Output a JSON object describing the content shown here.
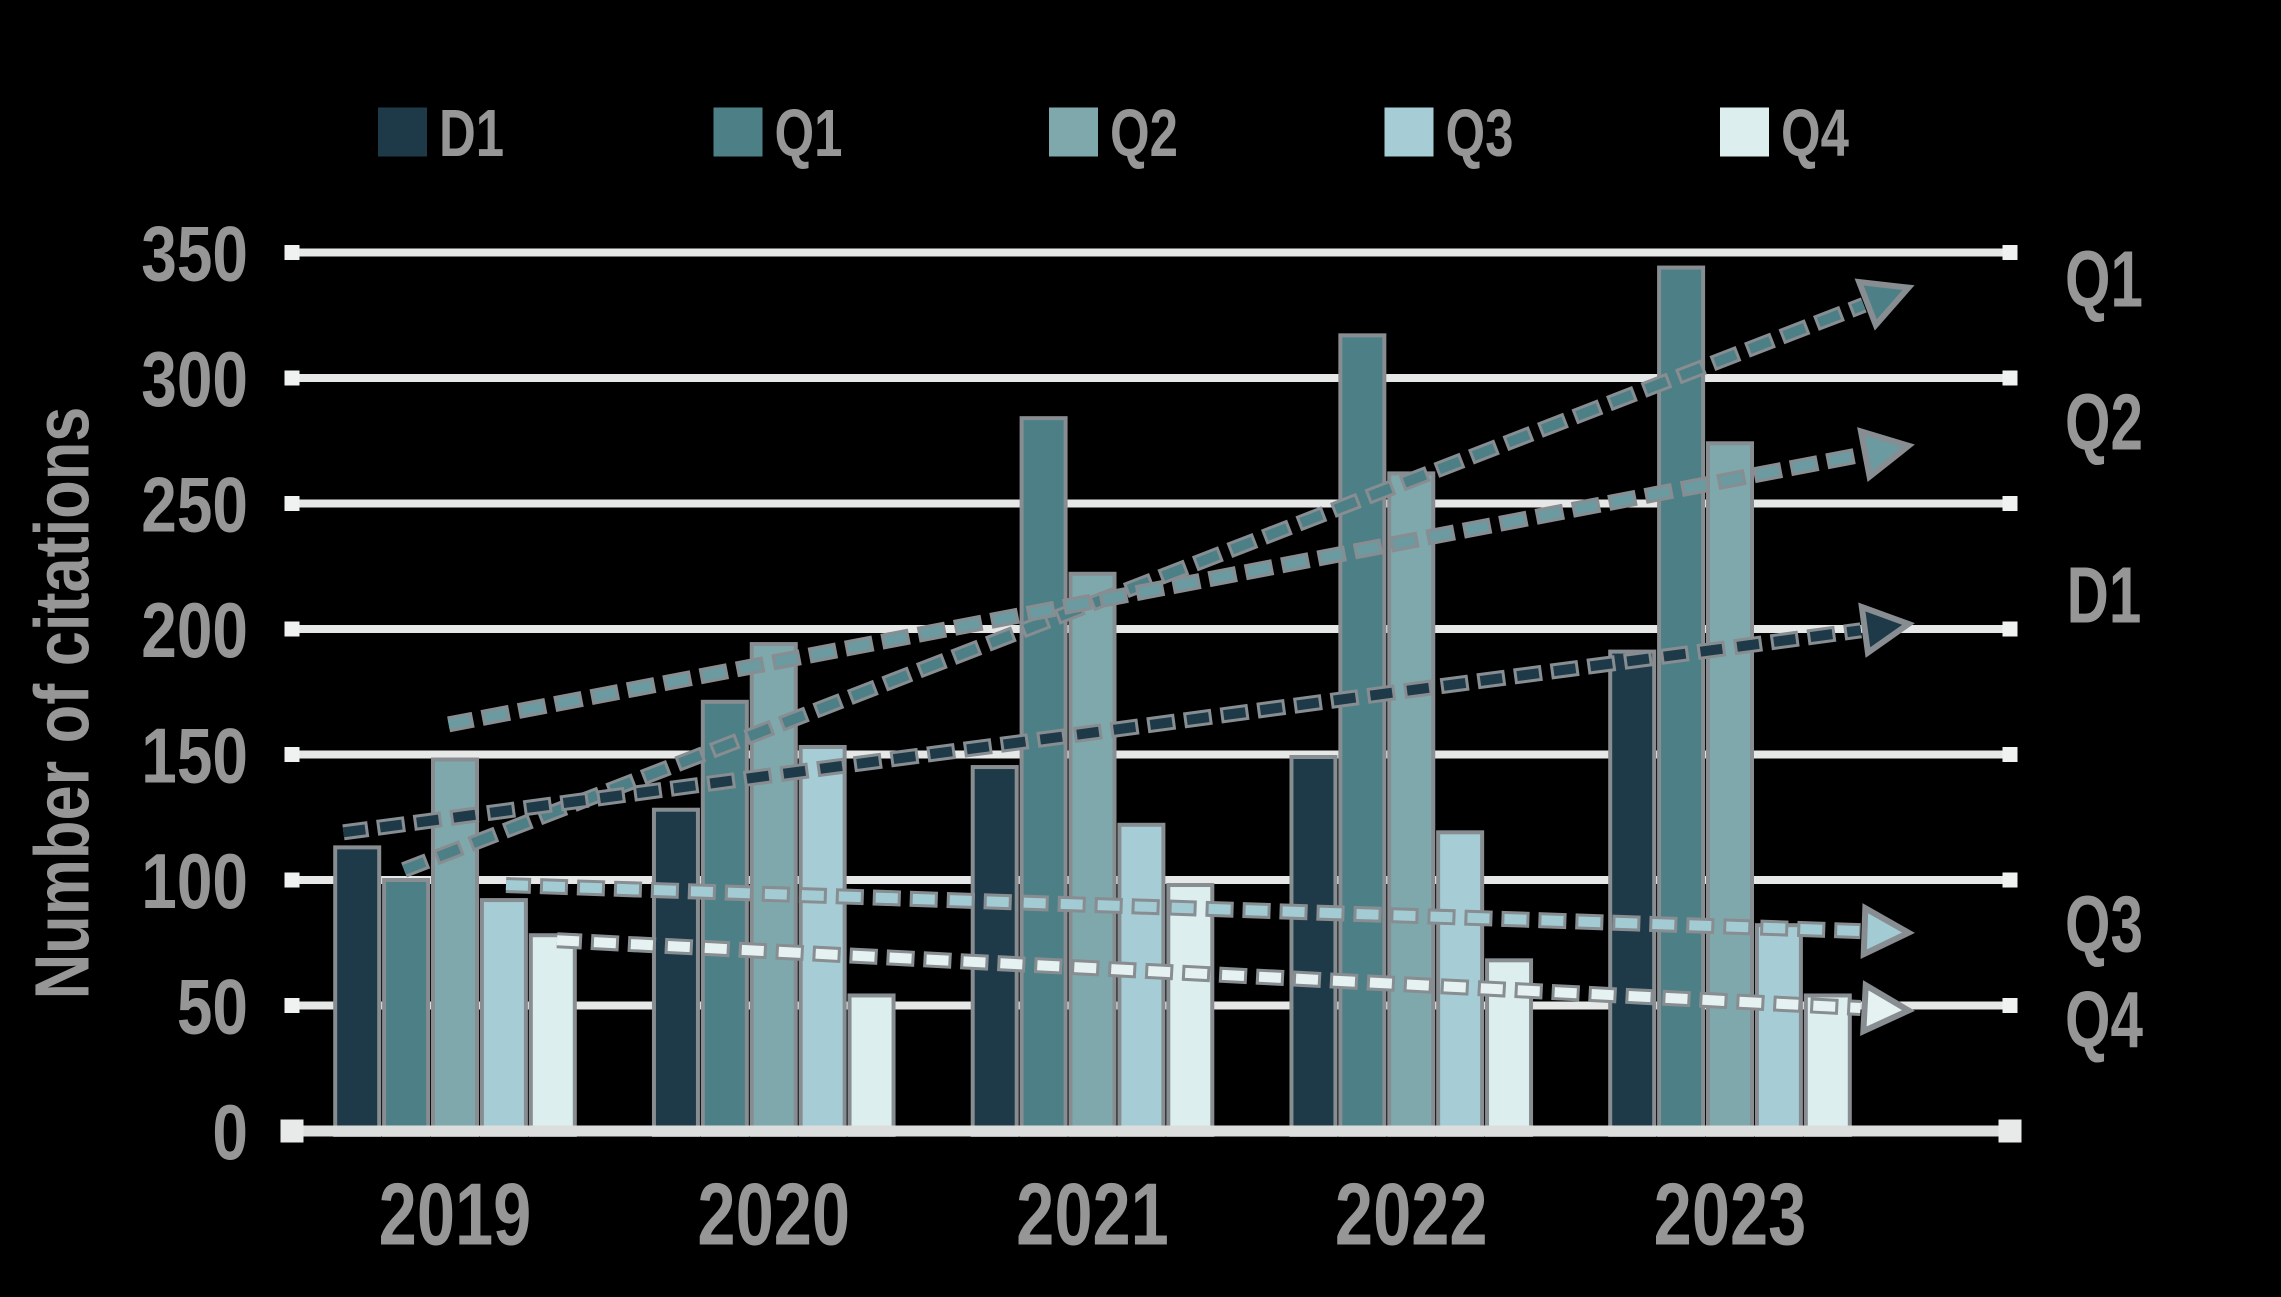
{
  "figure": {
    "background": "#000000",
    "text_color": "#969696",
    "grid_color": "#e6e8e8",
    "outline_color": "#878d90"
  },
  "chart_data": {
    "type": "bar",
    "title": "",
    "xlabel": "",
    "ylabel": "Number of citations",
    "categories": [
      "2019",
      "2020",
      "2021",
      "2022",
      "2023"
    ],
    "series": [
      {
        "name": "D1",
        "color": "#1e3a49",
        "values": [
          113,
          128,
          145,
          149,
          191
        ]
      },
      {
        "name": "Q1",
        "color": "#4d7f86",
        "values": [
          100,
          171,
          284,
          317,
          344
        ]
      },
      {
        "name": "Q2",
        "color": "#7fa8ad",
        "values": [
          148,
          194,
          222,
          262,
          274
        ]
      },
      {
        "name": "Q3",
        "color": "#a6cdd6",
        "values": [
          92,
          153,
          122,
          119,
          82
        ]
      },
      {
        "name": "Q4",
        "color": "#dcefee",
        "values": [
          78,
          54,
          98,
          68,
          54
        ]
      }
    ],
    "trendlines": [
      {
        "name": "Q1",
        "label": "Q1",
        "color": "#4d7f86",
        "start_x": -0.16,
        "start_value": 104,
        "tip_x": 4.56,
        "tip_value": 336,
        "label_value": 340
      },
      {
        "name": "Q2",
        "label": "Q2",
        "color": "#6b9ba1",
        "start_x": -0.02,
        "start_value": 162,
        "tip_x": 4.56,
        "tip_value": 273,
        "label_value": 283
      },
      {
        "name": "D1",
        "label": "D1",
        "color": "#1e3a49",
        "start_x": -0.35,
        "start_value": 119,
        "tip_x": 4.56,
        "tip_value": 202,
        "label_value": 214
      },
      {
        "name": "Q3",
        "label": "Q3",
        "color": "#a3cbd4",
        "start_x": 0.16,
        "start_value": 98,
        "tip_x": 4.56,
        "tip_value": 79,
        "label_value": 83
      },
      {
        "name": "Q4",
        "label": "Q4",
        "color": "#e6f2f1",
        "start_x": 0.32,
        "start_value": 76,
        "tip_x": 4.56,
        "tip_value": 48,
        "label_value": 45
      }
    ],
    "ylim": [
      0,
      350
    ],
    "ytick_step": 50,
    "y_ticks": [
      "0",
      "50",
      "100",
      "150",
      "200",
      "250",
      "300",
      "350"
    ],
    "grid": "horizontal",
    "legend_position": "top",
    "legend_labels": [
      "D1",
      "Q1",
      "Q2",
      "Q3",
      "Q4"
    ]
  }
}
